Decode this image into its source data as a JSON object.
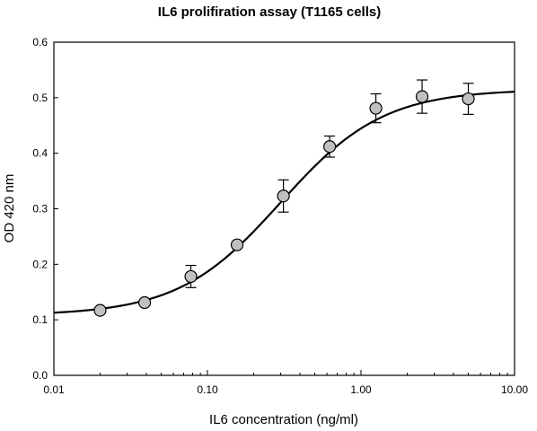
{
  "chart_data": {
    "type": "scatter",
    "title": "IL6 prolifiration assay (T1165 cells)",
    "xlabel": "IL6 concentration (ng/ml)",
    "ylabel": "OD 420 nm",
    "x_scale": "log",
    "xlim": [
      0.01,
      10
    ],
    "ylim": [
      0,
      0.6
    ],
    "x_ticks": [
      0.01,
      0.1,
      1,
      10
    ],
    "x_tick_labels": [
      "0.01",
      "0.10",
      "1.00",
      "10.00"
    ],
    "y_ticks": [
      0,
      0.1,
      0.2,
      0.3,
      0.4,
      0.5,
      0.6
    ],
    "y_tick_labels": [
      "0.0",
      "0.1",
      "0.2",
      "0.3",
      "0.4",
      "0.5",
      "0.6"
    ],
    "grid": false,
    "legend": "none",
    "points": [
      {
        "x": 0.02,
        "y": 0.117,
        "err": 0
      },
      {
        "x": 0.039,
        "y": 0.131,
        "err": 0
      },
      {
        "x": 0.078,
        "y": 0.178,
        "err": 0.02
      },
      {
        "x": 0.156,
        "y": 0.235,
        "err": 0
      },
      {
        "x": 0.3125,
        "y": 0.323,
        "err": 0.029
      },
      {
        "x": 0.625,
        "y": 0.412,
        "err": 0.019
      },
      {
        "x": 1.25,
        "y": 0.481,
        "err": 0.026
      },
      {
        "x": 2.5,
        "y": 0.502,
        "err": 0.03
      },
      {
        "x": 5,
        "y": 0.498,
        "err": 0.028
      }
    ],
    "fit": {
      "type": "4PL",
      "bottom": 0.108,
      "top": 0.515,
      "ec50": 0.3,
      "hill": 1.3
    },
    "colors": {
      "marker_fill": "#c0c0c0",
      "marker_stroke": "#000000",
      "curve": "#000000"
    }
  }
}
